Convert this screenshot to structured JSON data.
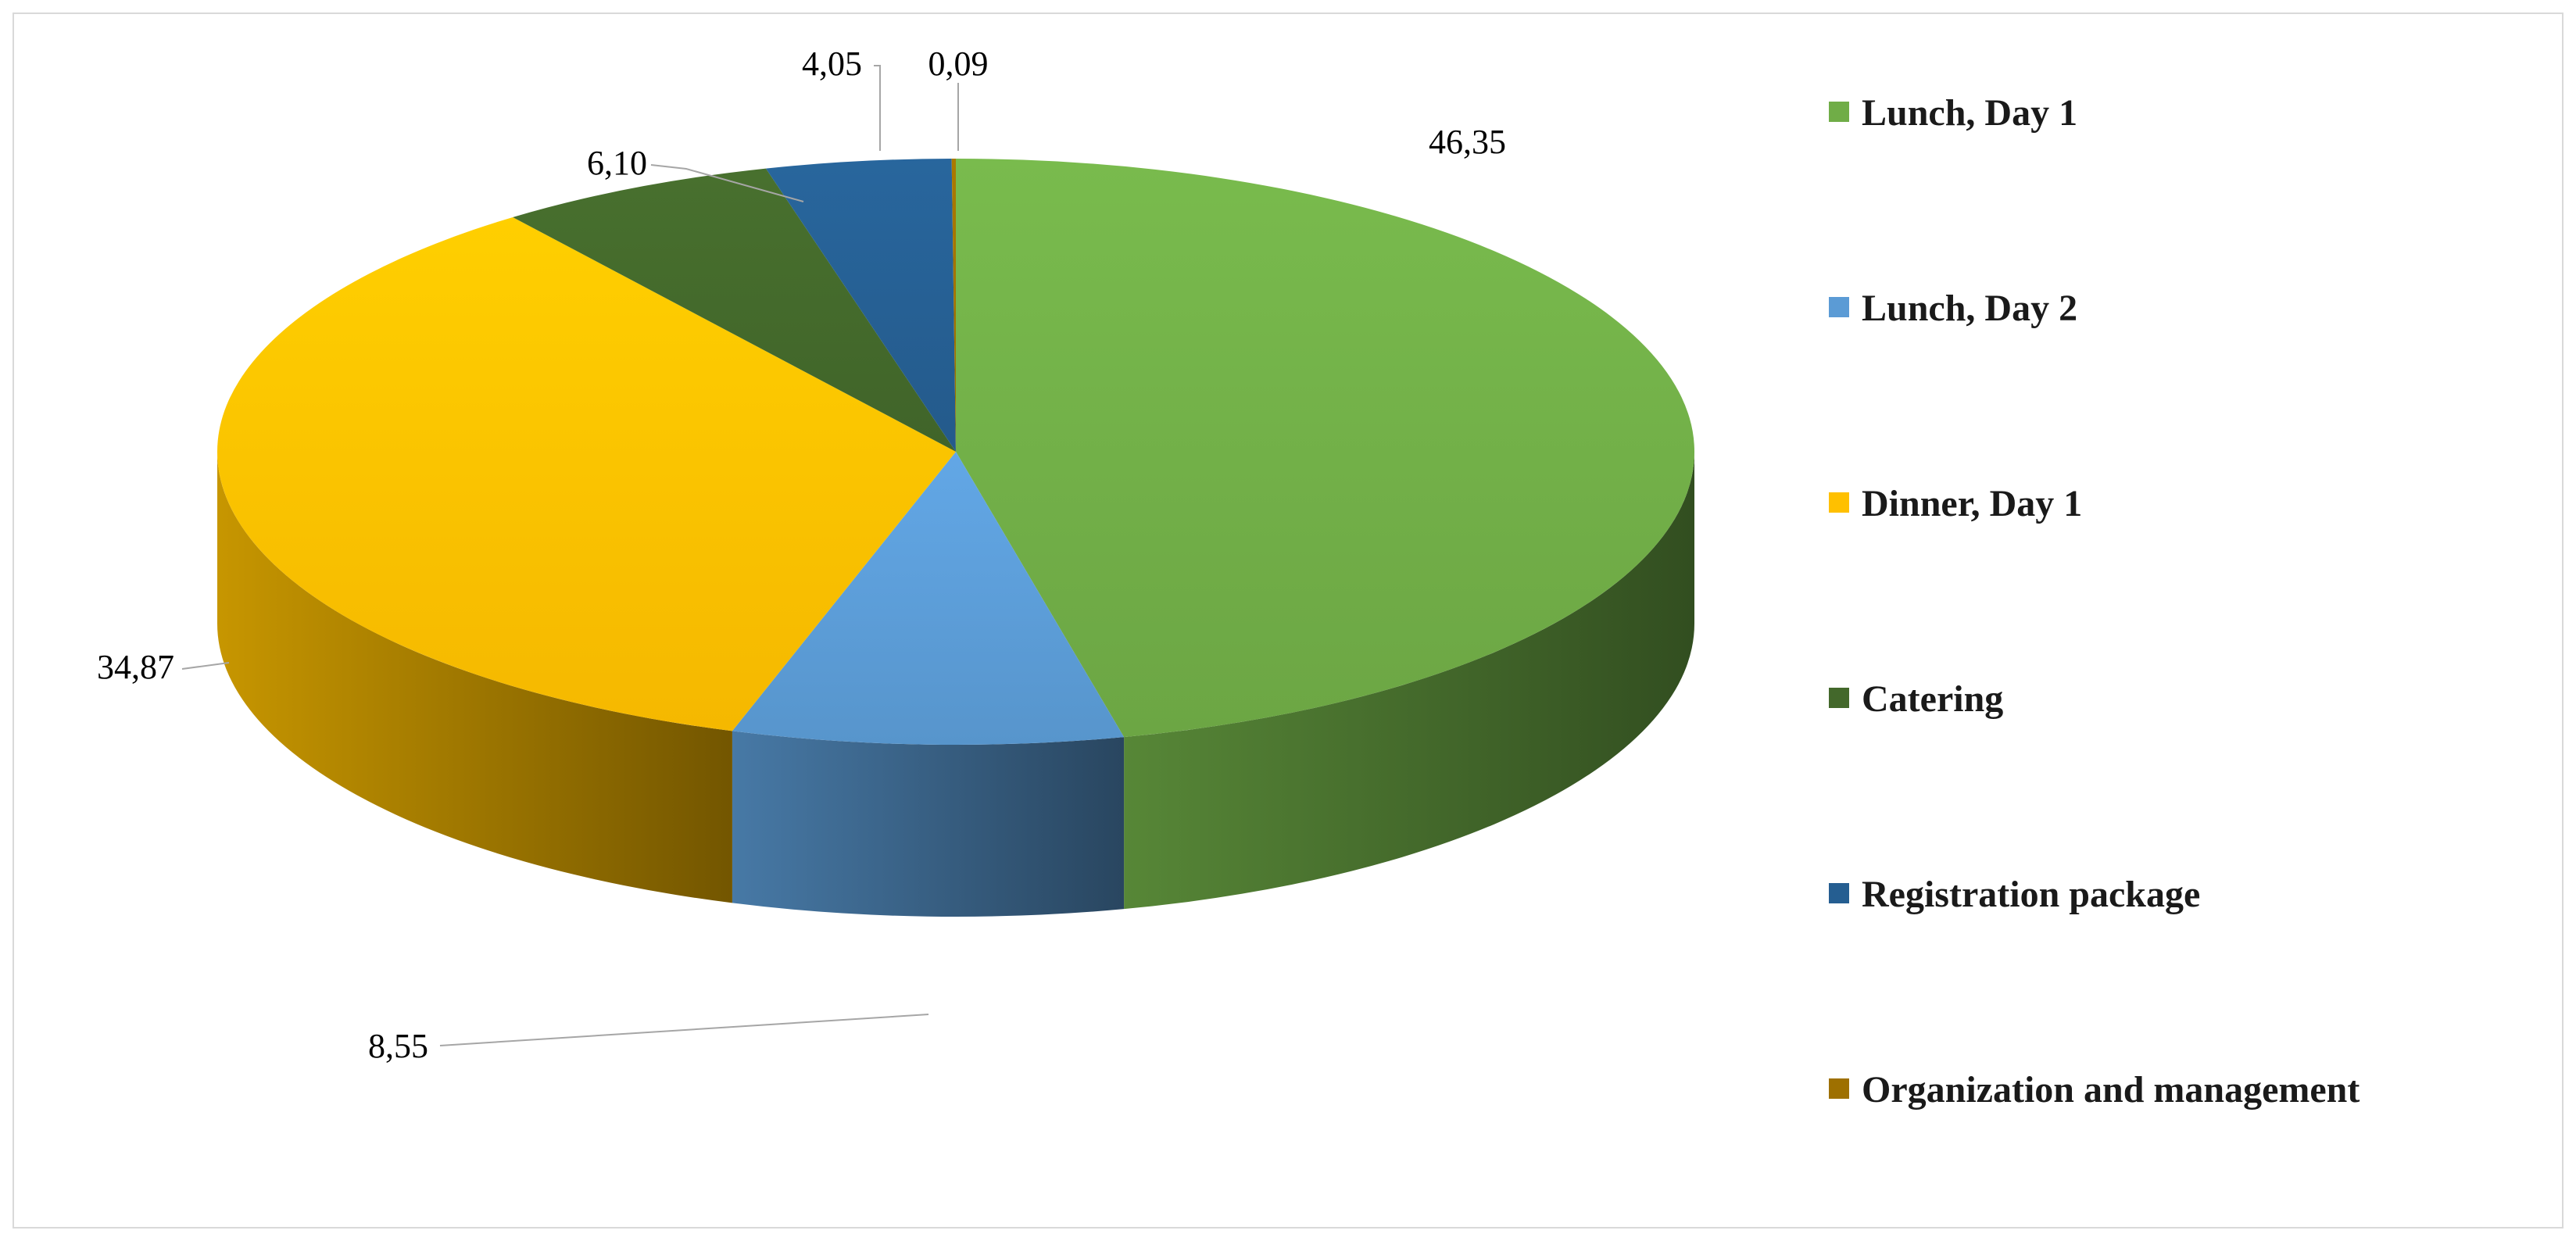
{
  "chart_data": {
    "type": "pie",
    "style": "3d",
    "start_angle_deg": 0,
    "direction": "clockwise",
    "legend_position": "right",
    "categories": [
      "Lunch, Day 1",
      "Lunch, Day 2",
      "Dinner, Day 1",
      "Catering",
      "Registration package",
      "Organization and management"
    ],
    "values": [
      46.35,
      8.55,
      34.87,
      6.1,
      4.05,
      0.09
    ],
    "value_labels": [
      "46,35",
      "8,55",
      "34,87",
      "6,10",
      "4,05",
      "0,09"
    ],
    "colors": [
      "#70ad47",
      "#5b9bd5",
      "#ffc000",
      "#43682b",
      "#255e91",
      "#9e7000"
    ]
  }
}
